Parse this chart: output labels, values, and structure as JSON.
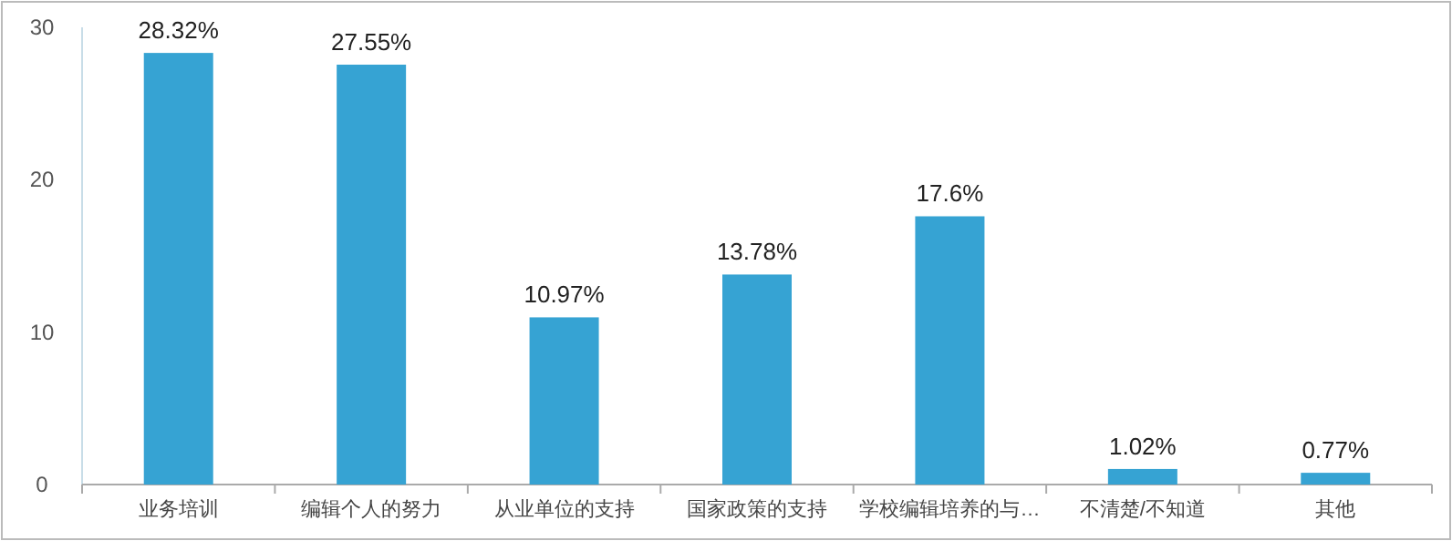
{
  "chart_data": {
    "type": "bar",
    "categories": [
      "业务培训",
      "编辑个人的努力",
      "从业单位的支持",
      "国家政策的支持",
      "学校编辑培养的与…",
      "不清楚/不知道",
      "其他"
    ],
    "values": [
      28.32,
      27.55,
      10.97,
      13.78,
      17.6,
      1.02,
      0.77
    ],
    "value_labels": [
      "28.32%",
      "27.55%",
      "10.97%",
      "13.78%",
      "17.6%",
      "1.02%",
      "0.77%"
    ],
    "color": "#36a3d3",
    "ylim": [
      0,
      30
    ],
    "yticks": [
      0,
      10,
      20,
      30
    ],
    "grid": false
  }
}
